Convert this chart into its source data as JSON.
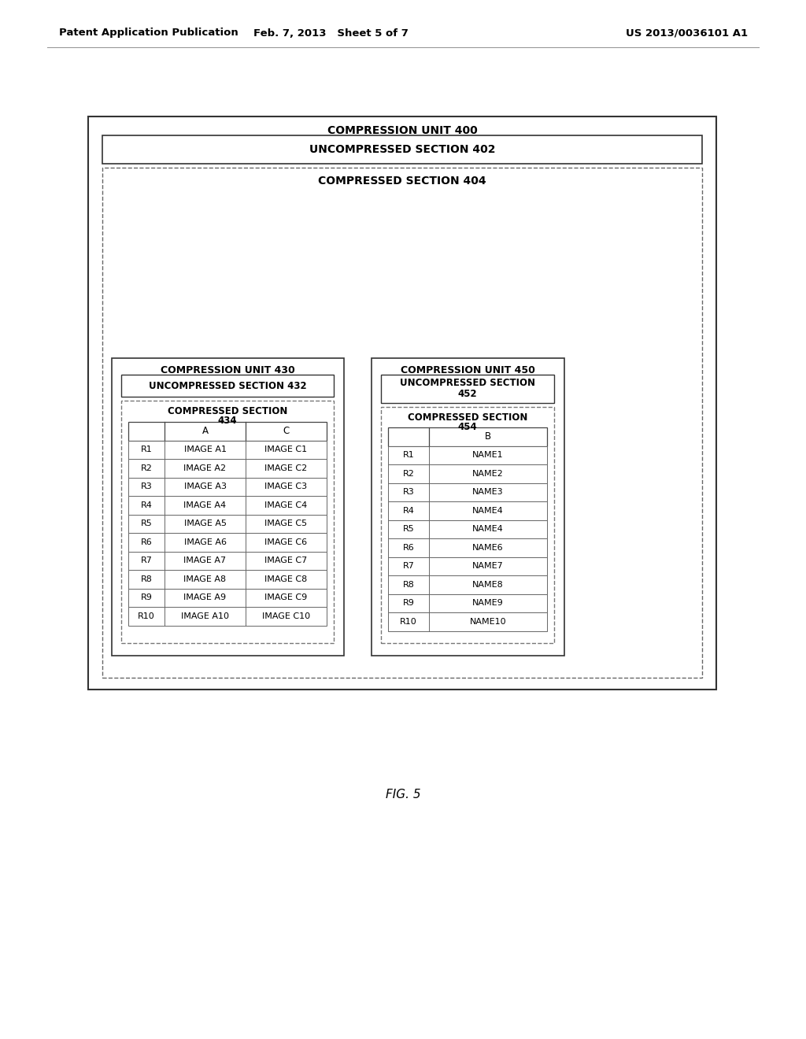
{
  "page_header_left": "Patent Application Publication",
  "page_header_mid": "Feb. 7, 2013   Sheet 5 of 7",
  "page_header_right": "US 2013/0036101 A1",
  "fig_label": "FIG. 5",
  "outer_box_label": "COMPRESSION UNIT 400",
  "uncomp_section_label": "UNCOMPRESSED SECTION 402",
  "comp_section_label": "COMPRESSED SECTION 404",
  "unit430_label": "COMPRESSION UNIT 430",
  "uncomp432_label": "UNCOMPRESSED SECTION 432",
  "comp434_line1": "COMPRESSED SECTION",
  "comp434_line2": "434",
  "table430_headers": [
    "",
    "A",
    "C"
  ],
  "table430_rows": [
    [
      "R1",
      "IMAGE A1",
      "IMAGE C1"
    ],
    [
      "R2",
      "IMAGE A2",
      "IMAGE C2"
    ],
    [
      "R3",
      "IMAGE A3",
      "IMAGE C3"
    ],
    [
      "R4",
      "IMAGE A4",
      "IMAGE C4"
    ],
    [
      "R5",
      "IMAGE A5",
      "IMAGE C5"
    ],
    [
      "R6",
      "IMAGE A6",
      "IMAGE C6"
    ],
    [
      "R7",
      "IMAGE A7",
      "IMAGE C7"
    ],
    [
      "R8",
      "IMAGE A8",
      "IMAGE C8"
    ],
    [
      "R9",
      "IMAGE A9",
      "IMAGE C9"
    ],
    [
      "R10",
      "IMAGE A10",
      "IMAGE C10"
    ]
  ],
  "unit450_label": "COMPRESSION UNIT 450",
  "uncomp452_line1": "UNCOMPRESSED SECTION",
  "uncomp452_line2": "452",
  "comp454_line1": "COMPRESSED SECTION",
  "comp454_line2": "454",
  "table450_headers": [
    "",
    "B"
  ],
  "table450_rows": [
    [
      "R1",
      "NAME1"
    ],
    [
      "R2",
      "NAME2"
    ],
    [
      "R3",
      "NAME3"
    ],
    [
      "R4",
      "NAME4"
    ],
    [
      "R5",
      "NAME4"
    ],
    [
      "R6",
      "NAME6"
    ],
    [
      "R7",
      "NAME7"
    ],
    [
      "R8",
      "NAME8"
    ],
    [
      "R9",
      "NAME9"
    ],
    [
      "R10",
      "NAME10"
    ]
  ],
  "bg_color": "#ffffff",
  "text_color": "#000000"
}
